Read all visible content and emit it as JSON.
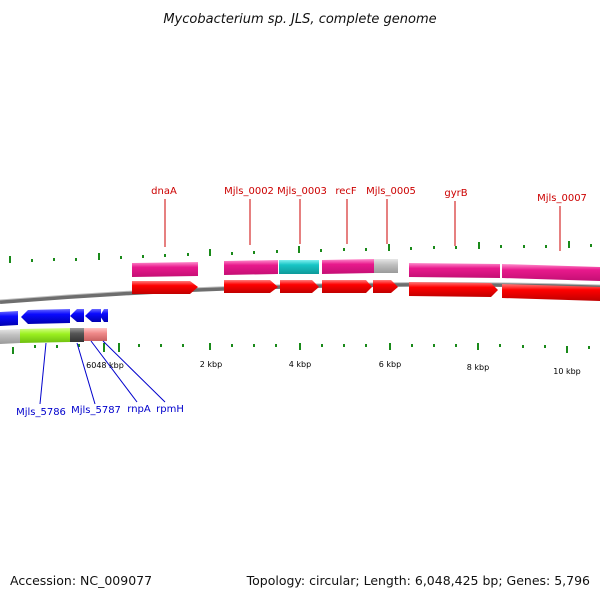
{
  "title": "Mycobacterium sp. JLS, complete genome",
  "footer": {
    "accession": "Accession: NC_009077",
    "summary": "Topology: circular; Length: 6,048,425 bp; Genes: 5,796"
  },
  "scale": {
    "labels": [
      "6048 kbp",
      "2 kbp",
      "4 kbp",
      "6 kbp",
      "8 kbp",
      "10 kbp"
    ]
  },
  "genes_top": [
    "dnaA",
    "Mjls_0002",
    "Mjls_0003",
    "recF",
    "Mjls_0005",
    "gyrB",
    "Mjls_0007"
  ],
  "genes_bottom": [
    "Mjls_5786",
    "Mjls_5787",
    "rnpA",
    "rpmH"
  ],
  "colors": {
    "top_label": "#cc0000",
    "bottom_label": "#0000cc",
    "cds_red": "#ff0000",
    "gene_pink": "#e8198c",
    "gene_cyan": "#18c6c6",
    "gene_gray": "#c0c0c0",
    "cds_blue": "#0a0aff",
    "lime": "#9cf020",
    "salmon": "#f08a8a",
    "tick_green": "#1a8a1a",
    "backbone": "#777777"
  }
}
